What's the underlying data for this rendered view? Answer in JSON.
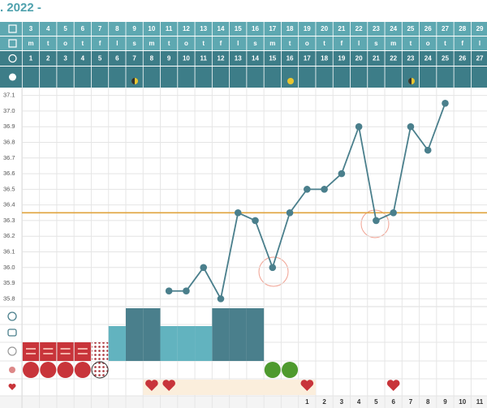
{
  "header": {
    "title": ". 2022 -"
  },
  "chart_data": {
    "type": "line",
    "categories": [
      3,
      4,
      5,
      6,
      7,
      8,
      9,
      10,
      11,
      12,
      13,
      14,
      15,
      16,
      17,
      18,
      19,
      20,
      21,
      22,
      23,
      24,
      25,
      26,
      27,
      28,
      29
    ],
    "weekdays": [
      "m",
      "t",
      "o",
      "t",
      "f",
      "l",
      "s",
      "m",
      "t",
      "o",
      "t",
      "f",
      "l",
      "s",
      "m",
      "t",
      "o",
      "t",
      "f",
      "l",
      "s",
      "m",
      "t",
      "o",
      "t",
      "f",
      "l"
    ],
    "cycle_days": [
      1,
      2,
      3,
      4,
      5,
      6,
      7,
      8,
      9,
      10,
      11,
      12,
      13,
      14,
      15,
      16,
      17,
      18,
      19,
      20,
      21,
      22,
      23,
      24,
      25,
      26,
      27
    ],
    "values": [
      null,
      null,
      null,
      null,
      null,
      null,
      null,
      null,
      35.85,
      35.85,
      36.0,
      35.8,
      36.35,
      36.3,
      36.0,
      36.35,
      36.5,
      36.5,
      36.6,
      36.9,
      36.3,
      36.35,
      36.9,
      36.75,
      37.05,
      null,
      null
    ],
    "color": "#4a7f8c",
    "coverline": 36.35,
    "coverline_color": "#e0a33e",
    "ylim": [
      35.75,
      37.15
    ],
    "yticks": [
      37.1,
      {
        "value": 37,
        "label": "37.0"
      },
      36.9,
      36.8,
      36.7,
      36.6,
      36.5,
      36.4,
      36.3,
      36.2,
      36.1,
      {
        "value": 36,
        "label": "36.0"
      },
      35.9,
      35.8
    ],
    "grid": true
  },
  "footer_days": [
    1,
    2,
    3,
    4,
    5,
    6,
    7,
    8,
    9,
    10,
    11
  ]
}
